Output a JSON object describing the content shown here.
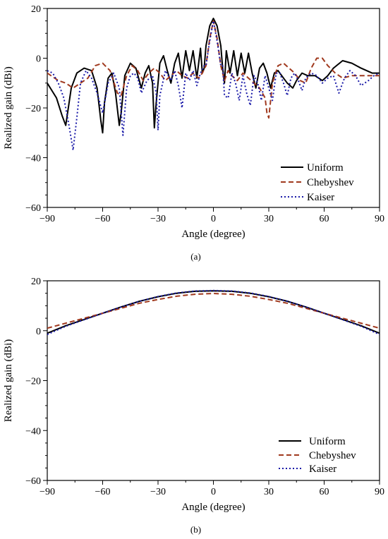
{
  "chart_data": [
    {
      "type": "line",
      "panel_label": "(a)",
      "xlabel": "Angle (degree)",
      "ylabel": "Realized gain (dBi)",
      "xlim": [
        -90,
        90
      ],
      "ylim": [
        -60,
        20
      ],
      "xticks": [
        -90,
        -60,
        -30,
        0,
        30,
        60,
        90
      ],
      "yticks": [
        20,
        0,
        -20,
        -40,
        -60
      ],
      "legend_position": "bottom-right",
      "series": [
        {
          "name": "Uniform",
          "color": "#000000",
          "dash": "solid",
          "x": [
            -90,
            -85,
            -82,
            -80,
            -77,
            -74,
            -70,
            -66,
            -63,
            -61,
            -60,
            -59,
            -57,
            -55,
            -53,
            -51,
            -50,
            -48,
            -45,
            -42,
            -39,
            -37,
            -35,
            -33,
            -32,
            -31,
            -29,
            -27,
            -25,
            -23,
            -21,
            -19,
            -17,
            -15,
            -13,
            -11,
            -9,
            -7,
            -6,
            -5,
            -4,
            -2,
            0,
            2,
            4,
            5,
            6,
            7,
            9,
            11,
            13,
            15,
            17,
            19,
            21,
            23,
            25,
            27,
            29,
            31,
            33,
            35,
            37,
            40,
            43,
            45,
            48,
            51,
            55,
            59,
            62,
            65,
            70,
            75,
            80,
            86,
            90
          ],
          "y": [
            -10,
            -16,
            -23,
            -27,
            -12,
            -6,
            -4,
            -5,
            -12,
            -25,
            -30,
            -18,
            -8,
            -6,
            -14,
            -27,
            -22,
            -7,
            -2,
            -4,
            -12,
            -6,
            -3,
            -10,
            -28,
            -18,
            -2,
            1,
            -5,
            -10,
            -2,
            2,
            -8,
            3,
            -5,
            3,
            -8,
            4,
            -6,
            -4,
            5,
            13,
            16,
            13,
            5,
            -4,
            -10,
            3,
            -6,
            3,
            -7,
            2,
            -6,
            2,
            -6,
            -12,
            -4,
            -2,
            -6,
            -12,
            -6,
            -5,
            -7,
            -10,
            -12,
            -9,
            -6,
            -7,
            -7,
            -9,
            -7,
            -4,
            -1,
            -2,
            -4,
            -6,
            -6
          ]
        },
        {
          "name": "Chebyshev",
          "color": "#a0391e",
          "dash": "dashed",
          "x": [
            -90,
            -84,
            -80,
            -76,
            -72,
            -68,
            -64,
            -60,
            -56,
            -52,
            -50,
            -47,
            -44,
            -41,
            -38,
            -35,
            -32,
            -29,
            -26,
            -23,
            -20,
            -17,
            -14,
            -11,
            -8,
            -6,
            -4,
            -2,
            0,
            2,
            4,
            6,
            8,
            10,
            13,
            16,
            19,
            22,
            25,
            28,
            29,
            30,
            32,
            35,
            38,
            41,
            44,
            47,
            50,
            53,
            56,
            59,
            62,
            66,
            70,
            75,
            80,
            85,
            90
          ],
          "y": [
            -6,
            -9,
            -10,
            -12,
            -10,
            -8,
            -3,
            -2,
            -5,
            -14,
            -15,
            -7,
            -3,
            -5,
            -9,
            -6,
            -4,
            -6,
            -9,
            -7,
            -5,
            -7,
            -8,
            -6,
            -8,
            -6,
            -3,
            8,
            15,
            8,
            -3,
            -9,
            -5,
            -7,
            -9,
            -6,
            -8,
            -10,
            -12,
            -16,
            -22,
            -24,
            -10,
            -3,
            -2,
            -4,
            -6,
            -9,
            -10,
            -4,
            0,
            0,
            -3,
            -6,
            -8,
            -7,
            -7,
            -7,
            -7
          ]
        },
        {
          "name": "Kaiser",
          "color": "#1a1aa8",
          "dash": "dotted",
          "x": [
            -90,
            -87,
            -84,
            -81,
            -78,
            -76,
            -74,
            -72,
            -69,
            -66,
            -63,
            -60,
            -57,
            -54,
            -51,
            -49,
            -47,
            -45,
            -43,
            -41,
            -39,
            -36,
            -33,
            -31,
            -30,
            -29,
            -26,
            -23,
            -21,
            -19,
            -17,
            -15,
            -13,
            -11,
            -9,
            -7,
            -5,
            -4,
            -2,
            0,
            2,
            4,
            5,
            6,
            8,
            10,
            12,
            14,
            16,
            18,
            20,
            22,
            24,
            26,
            28,
            30,
            32,
            34,
            36,
            38,
            40,
            42,
            44,
            46,
            48,
            50,
            53,
            56,
            59,
            62,
            65,
            68,
            71,
            74,
            77,
            80,
            84,
            87,
            90
          ],
          "y": [
            -5,
            -6,
            -10,
            -16,
            -28,
            -37,
            -24,
            -10,
            -5,
            -8,
            -14,
            -22,
            -10,
            -6,
            -12,
            -31,
            -12,
            -7,
            -6,
            -8,
            -14,
            -9,
            -7,
            -14,
            -29,
            -15,
            -5,
            -9,
            -5,
            -11,
            -20,
            -6,
            -9,
            -5,
            -11,
            -6,
            -3,
            -3,
            7,
            15,
            7,
            -3,
            -3,
            -15,
            -16,
            -6,
            -10,
            -17,
            -7,
            -14,
            -19,
            -7,
            -10,
            -17,
            -7,
            -12,
            -17,
            -6,
            -6,
            -10,
            -15,
            -8,
            -6,
            -9,
            -13,
            -8,
            -6,
            -7,
            -10,
            -8,
            -7,
            -14,
            -8,
            -5,
            -7,
            -11,
            -9,
            -7,
            -6
          ]
        }
      ]
    },
    {
      "type": "line",
      "panel_label": "(b)",
      "xlabel": "Angle (degree)",
      "ylabel": "Realized gain (dBi)",
      "xlim": [
        -90,
        90
      ],
      "ylim": [
        -60,
        20
      ],
      "xticks": [
        -90,
        -60,
        -30,
        0,
        30,
        60,
        90
      ],
      "yticks": [
        20,
        0,
        -20,
        -40,
        -60
      ],
      "legend_position": "bottom-right",
      "series": [
        {
          "name": "Uniform",
          "color": "#000000",
          "dash": "solid",
          "x": [
            -90,
            -80,
            -70,
            -60,
            -50,
            -40,
            -30,
            -20,
            -10,
            0,
            10,
            20,
            30,
            40,
            50,
            60,
            70,
            80,
            90
          ],
          "y": [
            -1,
            2,
            4.5,
            7,
            9.5,
            11.8,
            13.6,
            15,
            15.8,
            16,
            15.8,
            15,
            13.6,
            11.8,
            9.5,
            7,
            4.5,
            2,
            -1
          ]
        },
        {
          "name": "Chebyshev",
          "color": "#a0391e",
          "dash": "dashed",
          "x": [
            -90,
            -80,
            -70,
            -60,
            -50,
            -40,
            -30,
            -20,
            -10,
            0,
            10,
            20,
            30,
            40,
            50,
            60,
            70,
            80,
            90
          ],
          "y": [
            1,
            3,
            5,
            7,
            9,
            11,
            12.5,
            13.8,
            14.6,
            14.9,
            14.6,
            13.8,
            12.5,
            11,
            9,
            7,
            5,
            3,
            1
          ]
        },
        {
          "name": "Kaiser",
          "color": "#1a1aa8",
          "dash": "dotted",
          "x": [
            -90,
            -80,
            -70,
            -60,
            -50,
            -40,
            -30,
            -20,
            -10,
            0,
            10,
            20,
            30,
            40,
            50,
            60,
            70,
            80,
            90
          ],
          "y": [
            -1.5,
            1.8,
            4.4,
            7,
            9.5,
            11.8,
            13.7,
            15.1,
            15.9,
            16.1,
            15.9,
            15.1,
            13.7,
            11.8,
            9.5,
            7,
            4.4,
            1.8,
            -1.5
          ]
        }
      ]
    }
  ]
}
